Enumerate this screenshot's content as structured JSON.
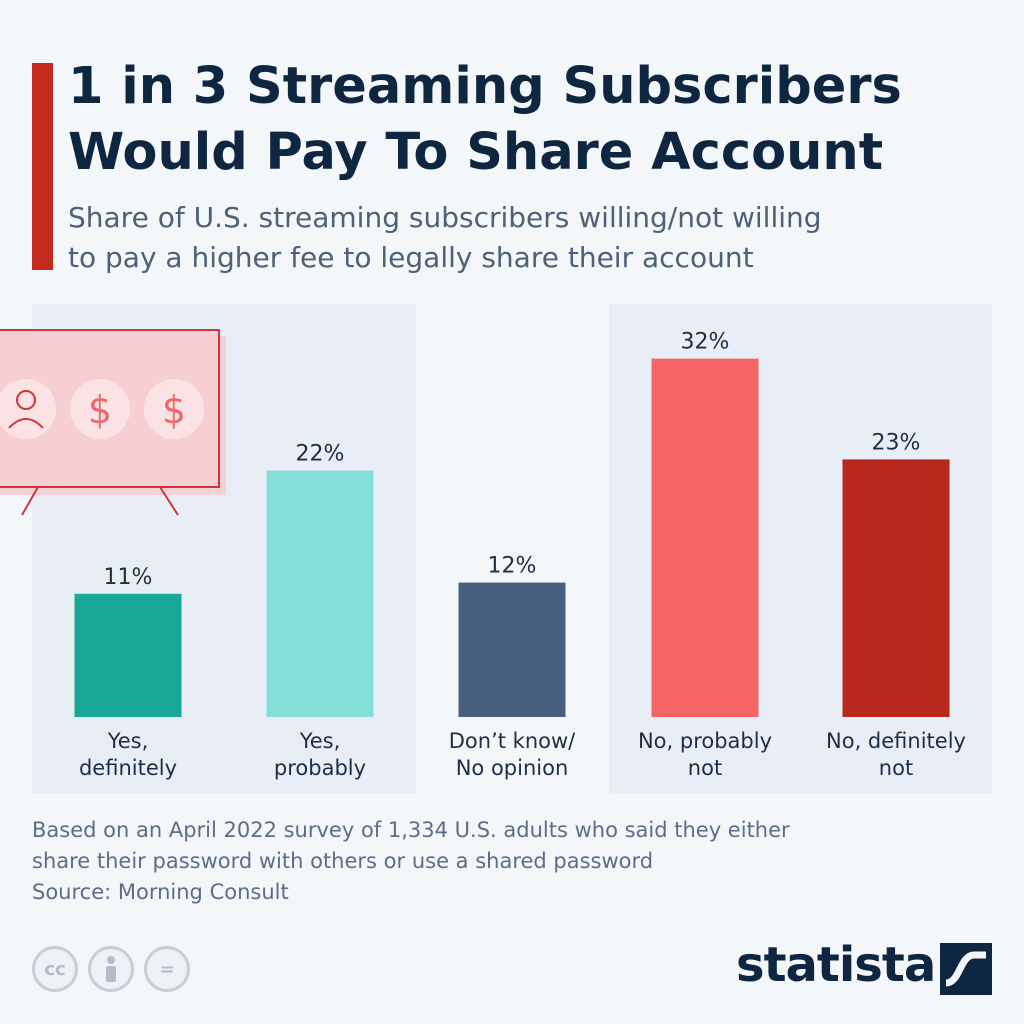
{
  "header": {
    "title_line1": "1 in 3 Streaming Subscribers",
    "title_line2": "Would Pay To Share Account",
    "subtitle_line1": "Share of U.S. streaming subscribers willing/not willing",
    "subtitle_line2": "to pay a higher fee to legally share their account"
  },
  "chart_data": {
    "type": "bar",
    "title": "1 in 3 Streaming Subscribers Would Pay To Share Account",
    "subtitle": "Share of U.S. streaming subscribers willing/not willing to pay a higher fee to legally share their account",
    "categories": [
      "Yes, definitely",
      "Yes, probably",
      "Don’t know/ No opinion",
      "No, probably not",
      "No, definitely not"
    ],
    "category_lines": [
      [
        "Yes,",
        "definitely"
      ],
      [
        "Yes,",
        "probably"
      ],
      [
        "Don’t know/",
        "No opinion"
      ],
      [
        "No, probably",
        "not"
      ],
      [
        "No, definitely",
        "not"
      ]
    ],
    "values": [
      11,
      22,
      12,
      32,
      23
    ],
    "value_labels": [
      "11%",
      "22%",
      "12%",
      "32%",
      "23%"
    ],
    "colors": [
      "#1aa898",
      "#82ded6",
      "#475d7d",
      "#f56565",
      "#b7271c"
    ],
    "unit": "%",
    "grid": false,
    "legend": "none"
  },
  "illustration": {
    "icons": [
      "user-icon",
      "dollar-icon",
      "dollar-icon"
    ],
    "glyph": "$"
  },
  "footer": {
    "note_line1": "Based on an April 2022 survey of 1,334 U.S. adults who said they either",
    "note_line2": "share their password with others or use a shared password",
    "source": "Source: Morning Consult",
    "license_icons": [
      "cc-icon",
      "attribution-icon",
      "no-derivatives-icon"
    ],
    "license_glyphs": [
      "cc",
      "="
    ],
    "brand": "statista"
  }
}
